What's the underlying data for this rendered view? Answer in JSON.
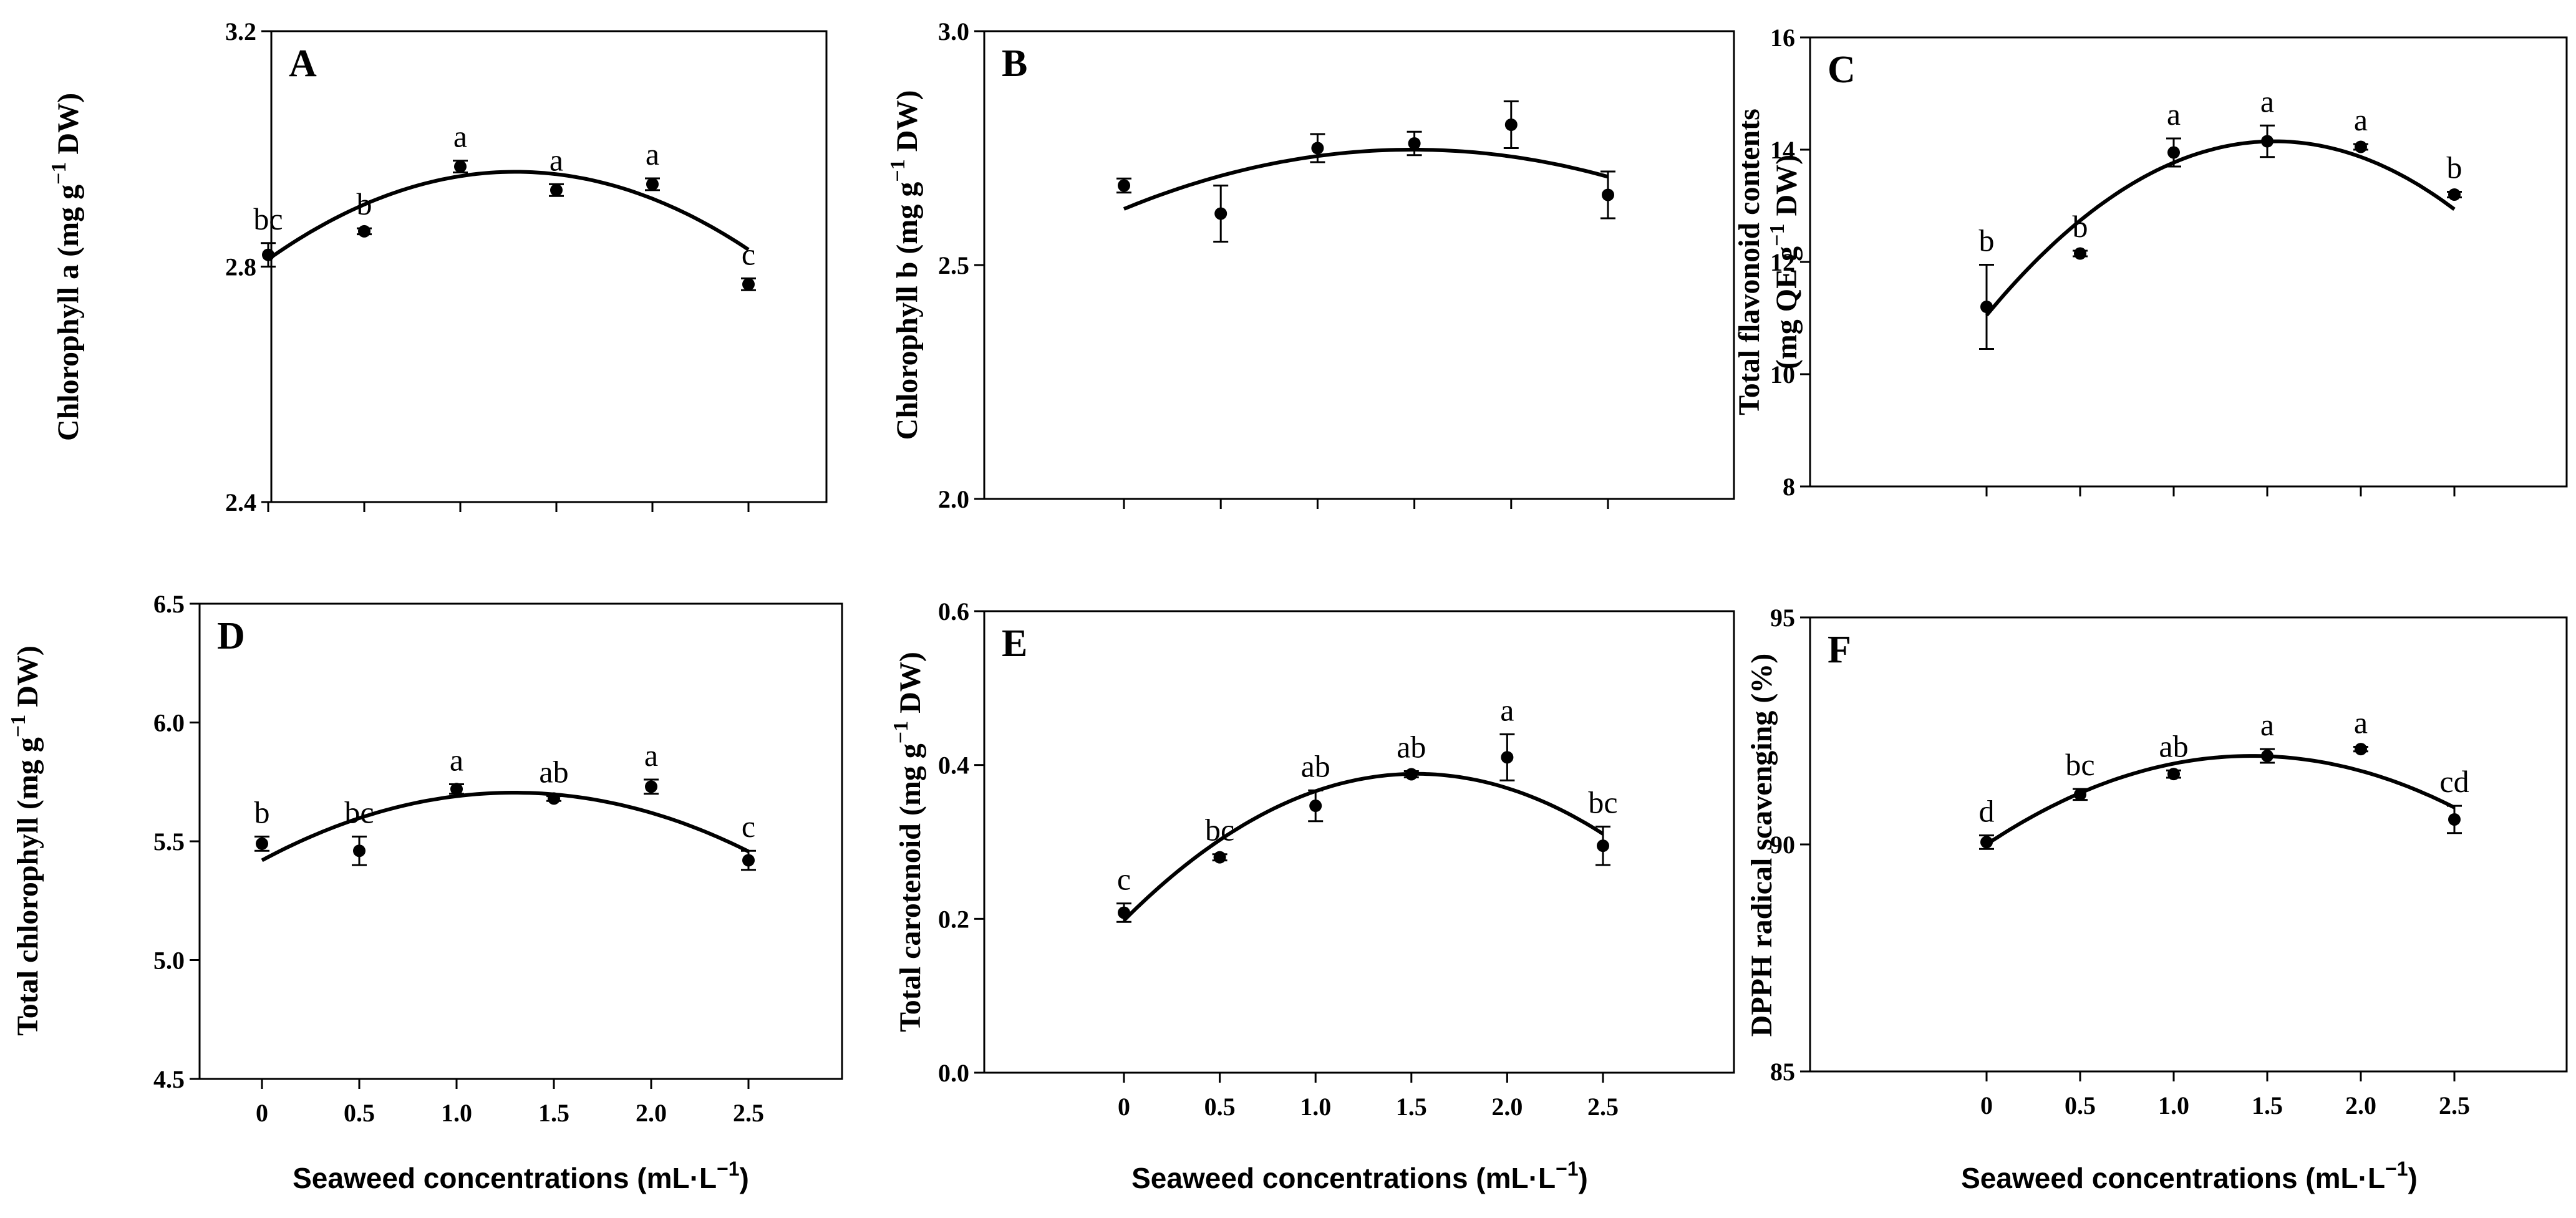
{
  "figure": {
    "background": "#ffffff",
    "ink": "#000000"
  },
  "chart_data": [
    {
      "id": "A",
      "type": "scatter",
      "panel_label": "A",
      "ylabel_main": "Chlorophyll a (mg g",
      "ylabel_sup": "−1",
      "ylabel_tail": " DW)",
      "xlabel": "",
      "ylim": [
        2.4,
        3.2
      ],
      "yticks": [
        2.4,
        2.8,
        3.2
      ],
      "ytick_labels": [
        "2.4",
        "2.8",
        "3.2"
      ],
      "x": [
        0,
        0.5,
        1.0,
        1.5,
        2.0,
        2.5
      ],
      "xtick_labels": [],
      "values": [
        2.82,
        2.86,
        2.97,
        2.93,
        2.94,
        2.77
      ],
      "errors": [
        0.02,
        0.005,
        0.01,
        0.01,
        0.01,
        0.01
      ],
      "letters": [
        "bc",
        "b",
        "a",
        "a",
        "a",
        "c"
      ],
      "fit": [
        2.8124,
        0.2311,
        -0.0898
      ]
    },
    {
      "id": "B",
      "type": "scatter",
      "panel_label": "B",
      "ylabel_main": "Chlorophyll b (mg g",
      "ylabel_sup": "−1",
      "ylabel_tail": " DW)",
      "xlabel": "",
      "ylim": [
        2.0,
        3.0
      ],
      "yticks": [
        2.0,
        2.5,
        3.0
      ],
      "ytick_labels": [
        "2.0",
        "2.5",
        "3.0"
      ],
      "x": [
        0,
        0.5,
        1.0,
        1.5,
        2.0,
        2.5
      ],
      "xtick_labels": [],
      "values": [
        2.67,
        2.61,
        2.75,
        2.76,
        2.8,
        2.65
      ],
      "errors": [
        0.015,
        0.06,
        0.03,
        0.025,
        0.05,
        0.05
      ],
      "letters": [
        "",
        "",
        "",
        "",
        "",
        ""
      ],
      "fit": [
        2.62,
        0.17,
        -0.057
      ]
    },
    {
      "id": "C",
      "type": "scatter",
      "panel_label": "C",
      "ylabel_main": "Total flavonoid contents",
      "ylabel2_main": "(mg QE g",
      "ylabel_sup": "−1",
      "ylabel_tail": " DW)",
      "xlabel": "",
      "ylim": [
        8,
        16
      ],
      "yticks": [
        8,
        10,
        12,
        14,
        16
      ],
      "ytick_labels": [
        "8",
        "10",
        "12",
        "14",
        "16"
      ],
      "x": [
        0,
        0.5,
        1.0,
        1.5,
        2.0,
        2.5
      ],
      "xtick_labels": [],
      "values": [
        11.2,
        12.15,
        13.95,
        14.15,
        14.05,
        13.2
      ],
      "errors": [
        0.75,
        0.05,
        0.25,
        0.28,
        0.05,
        0.05
      ],
      "letters": [
        "b",
        "b",
        "a",
        "a",
        "a",
        "b"
      ],
      "fit": [
        11.05,
        4.03,
        -1.31
      ]
    },
    {
      "id": "D",
      "type": "scatter",
      "panel_label": "D",
      "ylabel_main": "Total chlorophyll (mg g",
      "ylabel_sup": "−1",
      "ylabel_tail": " DW)",
      "xlabel": "Seaweed concentrations (mL·L",
      "xlabel_sup": "−1",
      "xlabel_tail": ")",
      "ylim": [
        4.5,
        6.5
      ],
      "yticks": [
        4.5,
        5.0,
        5.5,
        6.0,
        6.5
      ],
      "ytick_labels": [
        "4.5",
        "5.0",
        "5.5",
        "6.0",
        "6.5"
      ],
      "x": [
        0,
        0.5,
        1.0,
        1.5,
        2.0,
        2.5
      ],
      "xtick_labels": [
        "0",
        "0.5",
        "1.0",
        "1.5",
        "2.0",
        "2.5"
      ],
      "values": [
        5.49,
        5.46,
        5.72,
        5.68,
        5.73,
        5.42
      ],
      "errors": [
        0.03,
        0.06,
        0.02,
        0.01,
        0.03,
        0.04
      ],
      "letters": [
        "b",
        "bc",
        "a",
        "ab",
        "a",
        "c"
      ],
      "fit": [
        5.42,
        0.44,
        -0.17
      ]
    },
    {
      "id": "E",
      "type": "scatter",
      "panel_label": "E",
      "ylabel_main": "Total carotenoid (mg g",
      "ylabel_sup": "−1",
      "ylabel_tail": " DW)",
      "xlabel": "Seaweed concentrations (mL·L",
      "xlabel_sup": "−1",
      "xlabel_tail": ")",
      "ylim": [
        0.0,
        0.6
      ],
      "yticks": [
        0.0,
        0.2,
        0.4,
        0.6
      ],
      "ytick_labels": [
        "0.0",
        "0.2",
        "0.4",
        "0.6"
      ],
      "x": [
        0,
        0.5,
        1.0,
        1.5,
        2.0,
        2.5
      ],
      "xtick_labels": [
        "0",
        "0.5",
        "1.0",
        "1.5",
        "2.0",
        "2.5"
      ],
      "values": [
        0.208,
        0.28,
        0.347,
        0.388,
        0.41,
        0.295
      ],
      "errors": [
        0.012,
        0.004,
        0.02,
        0.004,
        0.03,
        0.025
      ],
      "letters": [
        "c",
        "bc",
        "ab",
        "ab",
        "a",
        "bc"
      ],
      "fit": [
        0.198,
        0.25,
        -0.082
      ]
    },
    {
      "id": "F",
      "type": "scatter",
      "panel_label": "F",
      "ylabel_main": "DPPH radical scavenging (%)",
      "ylabel_sup": "",
      "ylabel_tail": "",
      "xlabel": "Seaweed concentrations (mL·L",
      "xlabel_sup": "−1",
      "xlabel_tail": ")",
      "ylim": [
        85,
        95
      ],
      "yticks": [
        85,
        90,
        95
      ],
      "ytick_labels": [
        "85",
        "90",
        "95"
      ],
      "x": [
        0,
        0.5,
        1.0,
        1.5,
        2.0,
        2.5
      ],
      "xtick_labels": [
        "0",
        "0.5",
        "1.0",
        "1.5",
        "2.0",
        "2.5"
      ],
      "values": [
        90.05,
        91.1,
        91.55,
        91.95,
        92.1,
        90.55
      ],
      "errors": [
        0.15,
        0.12,
        0.08,
        0.15,
        0.05,
        0.3
      ],
      "letters": [
        "d",
        "bc",
        "ab",
        "a",
        "a",
        "cd"
      ],
      "fit": [
        90.0,
        2.75,
        -0.97
      ]
    }
  ]
}
